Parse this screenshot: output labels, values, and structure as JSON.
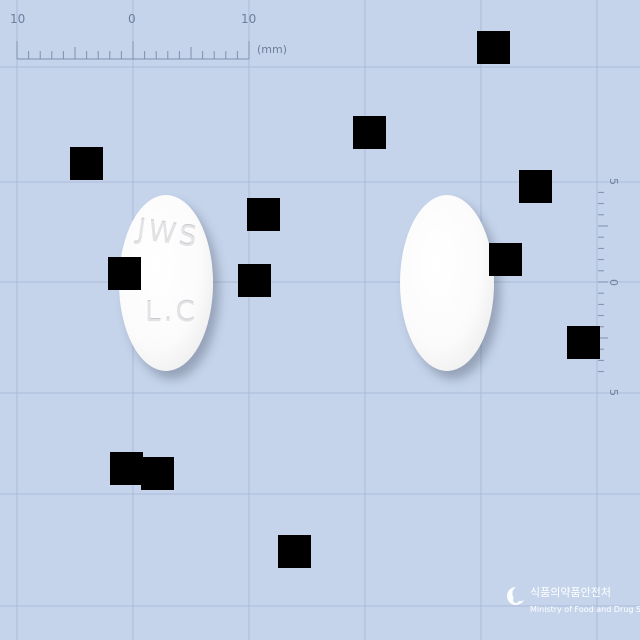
{
  "ruler": {
    "top_labels": [
      "10",
      "0",
      "10"
    ],
    "unit": "(mm)",
    "side_labels": [
      "5",
      "0",
      "5"
    ]
  },
  "pills": [
    {
      "imprint_line1": "JWS",
      "imprint_line2": "L.C",
      "color": "#ffffff"
    },
    {
      "imprint_line1": "",
      "imprint_line2": "",
      "color": "#ffffff"
    }
  ],
  "watermark": {
    "korean": "식품의약품안전처",
    "english": "Ministry of Food and Drug Safety"
  },
  "colors": {
    "background": "#c5d4eb",
    "grid": "#aabbd8",
    "ruler": "#7f8fae"
  }
}
